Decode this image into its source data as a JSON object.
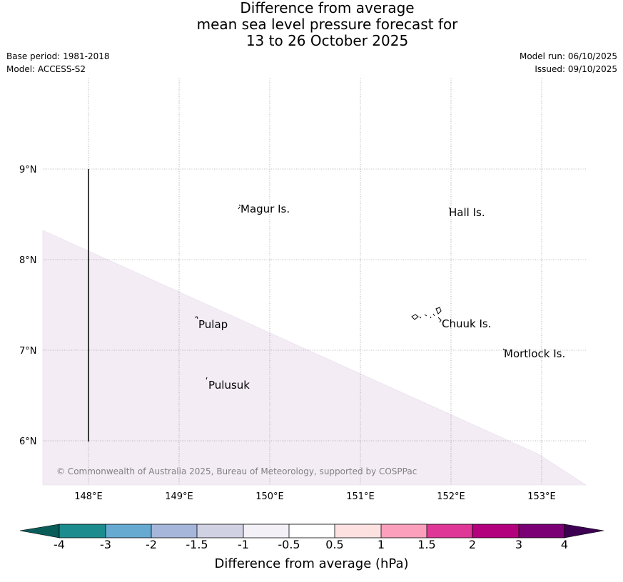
{
  "title": {
    "line1": "Difference from average",
    "line2": "mean sea level pressure forecast for",
    "line3": "13 to 26 October 2025"
  },
  "meta": {
    "base_period": "Base period: 1981-2018",
    "model": "Model: ACCESS-S2",
    "model_run": "Model run: 06/10/2025",
    "issued": "Issued: 09/10/2025"
  },
  "map": {
    "lon_labels": [
      "148°E",
      "149°E",
      "150°E",
      "151°E",
      "152°E",
      "153°E"
    ],
    "lat_labels": [
      "9°N",
      "8°N",
      "7°N",
      "6°N"
    ],
    "places": [
      {
        "name": "Magur Is."
      },
      {
        "name": "Hall Is."
      },
      {
        "name": "Pulap"
      },
      {
        "name": "Chuuk Is."
      },
      {
        "name": "Mortlock Is."
      },
      {
        "name": "Pulusuk"
      }
    ],
    "anomaly_region_color": "#f3ecf5",
    "copyright": "© Commonwealth of Australia 2025, Bureau of Meteorology, supported by COSPPac"
  },
  "colorbar": {
    "label": "Difference from average (hPa)",
    "ticks": [
      "-4",
      "-3",
      "-2",
      "-1.5",
      "-1",
      "-0.5",
      "0.5",
      "1",
      "1.5",
      "2",
      "3",
      "4"
    ],
    "colors": [
      "#1c8c8e",
      "#66aad2",
      "#a6b6da",
      "#d1d1e4",
      "#f4f0f8",
      "#ffffff",
      "#fde1e1",
      "#fb9fbc",
      "#df3798",
      "#b3007c",
      "#7b0075"
    ],
    "under_color": "#0a5c59",
    "over_color": "#3d0052"
  }
}
